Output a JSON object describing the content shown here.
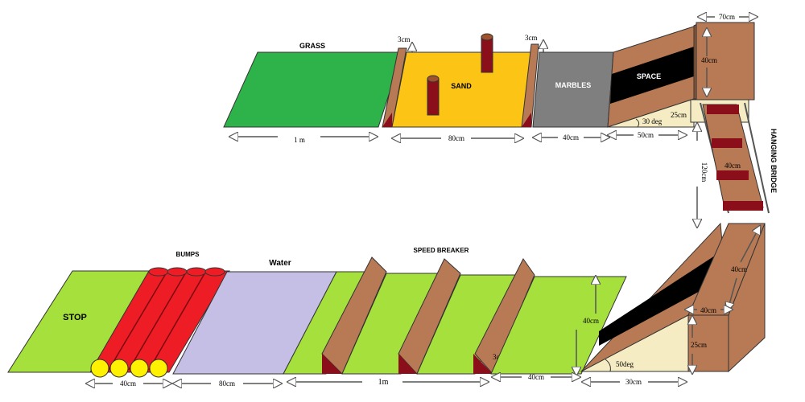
{
  "labels": {
    "grass": "GRASS",
    "sand": "SAND",
    "marbles": "MARBLES",
    "space_top": "SPACE",
    "hanging_bridge": "HANGING BRIDGE",
    "stop": "STOP",
    "bumps": "BUMPS",
    "water": "Water",
    "speed_breaker": "SPEED BREAKER"
  },
  "dimensions": {
    "grass_length": "1 m",
    "sand_length": "80cm",
    "marbles_length": "40cm",
    "ramp_top_base": "50cm",
    "ramp_top_height": "25cm",
    "ramp_top_angle": "30 deg",
    "barrier_height_1": "3cm",
    "barrier_height_2": "3cm",
    "platform_top_width": "70cm",
    "platform_top_depth": "40cm",
    "bridge_length": "120cm",
    "bridge_width": "40cm",
    "platform_bottom_depth": "40cm",
    "platform_bottom_width": "40cm",
    "platform_bottom_height": "25cm",
    "ramp_bottom_base": "30cm",
    "ramp_bottom_angle": "50deg",
    "flat_bottom_length": "40cm",
    "flat_bottom_width": "40cm",
    "speed_breaker_height": "3cm",
    "speed_breaker_section": "1m",
    "water_length": "80cm",
    "bumps_length": "40cm"
  },
  "colors": {
    "grass": "#2eb24a",
    "sand": "#fcc515",
    "marbles": "#7f7f7f",
    "wood": "#b77a55",
    "dark_red": "#8b0f1a",
    "black_strip": "#000000",
    "cream": "#f6ecc3",
    "lime": "#a6e03c",
    "bump_red": "#ee1c24",
    "bump_yellow": "#fff200",
    "water": "#c5bfe6"
  }
}
